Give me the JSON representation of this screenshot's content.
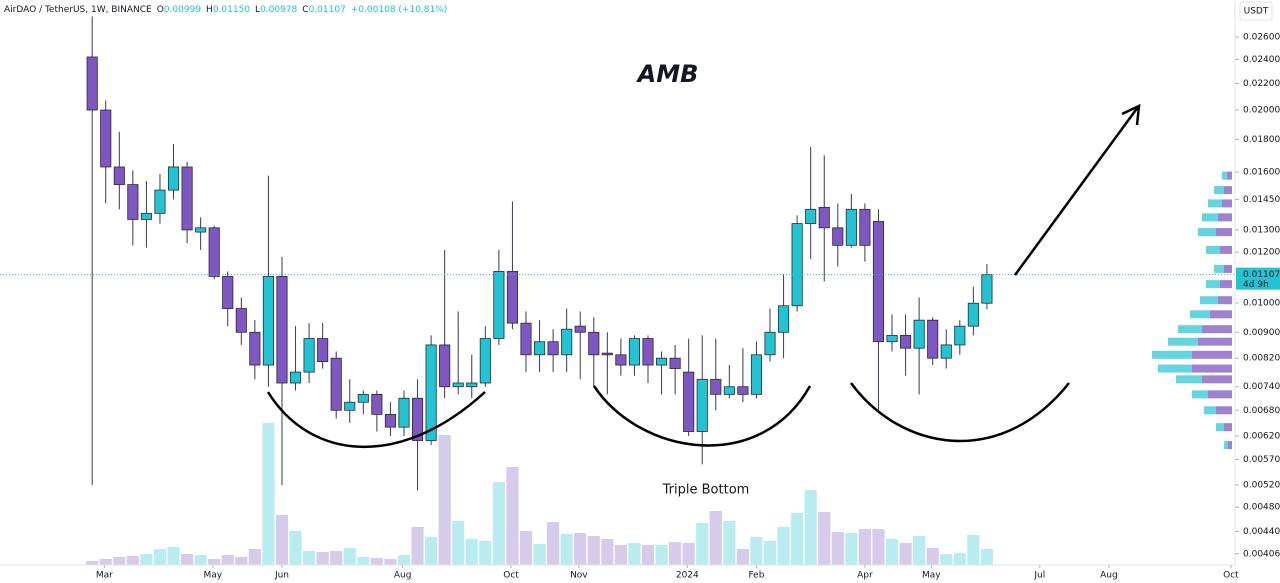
{
  "chart_data": {
    "type": "candlestick",
    "title": "AMB",
    "annotation": "Triple Bottom",
    "header": {
      "symbol": "AirDAO / TetherUS, 1W, BINANCE",
      "ohlc": [
        {
          "name": "O",
          "value": 0.00999
        },
        {
          "name": "H",
          "value": 0.0115,
          "label": "0.01150"
        },
        {
          "name": "L",
          "value": 0.00978
        },
        {
          "name": "C",
          "value": 0.01107
        }
      ],
      "change": "+0.00108 (+10.81%)"
    },
    "currency": "USDT",
    "countdown": "4d 9h",
    "up_color": "#22c3d2",
    "down_color": "#7e57c2",
    "volume_up_color": "#b9ecf1",
    "volume_down_color": "#d6cbeb",
    "log_y": true,
    "ylim": [
      0.0039,
      0.0297
    ],
    "yticks": [
      {
        "value": 0.026,
        "label": "0.02600"
      },
      {
        "value": 0.024,
        "label": "0.02400"
      },
      {
        "value": 0.022,
        "label": "0.02200"
      },
      {
        "value": 0.02,
        "label": "0.02000"
      },
      {
        "value": 0.018,
        "label": "0.01800"
      },
      {
        "value": 0.016,
        "label": "0.01600"
      },
      {
        "value": 0.0145,
        "label": "0.01450"
      },
      {
        "value": 0.013,
        "label": "0.01300"
      },
      {
        "value": 0.012,
        "label": "0.01200"
      },
      {
        "value": 0.01,
        "label": "0.01000"
      },
      {
        "value": 0.009,
        "label": "0.00900"
      },
      {
        "value": 0.0082,
        "label": "0.00820"
      },
      {
        "value": 0.0074,
        "label": "0.00740"
      },
      {
        "value": 0.0068,
        "label": "0.00680"
      },
      {
        "value": 0.0062,
        "label": "0.00620"
      },
      {
        "value": 0.0057,
        "label": "0.00570"
      },
      {
        "value": 0.0052,
        "label": "0.00520"
      },
      {
        "value": 0.0048,
        "label": "0.00480"
      },
      {
        "value": 0.0044,
        "label": "0.00440"
      },
      0.00406
    ],
    "xlim": [
      -6.8,
      84.3
    ],
    "xticks": [
      {
        "value": 0.9,
        "label": "Mar"
      },
      {
        "value": 8.9,
        "label": "May"
      },
      {
        "value": 14,
        "label": "Jun"
      },
      {
        "value": 22.9,
        "label": "Aug"
      },
      {
        "value": 30.9,
        "label": "Oct"
      },
      {
        "value": 35.9,
        "label": "Nov"
      },
      {
        "value": 43.9,
        "label": "2024"
      },
      {
        "value": 49,
        "label": "Feb"
      },
      {
        "value": 57,
        "label": "Apr"
      },
      {
        "value": 61.9,
        "label": "May"
      },
      {
        "value": 69.9,
        "label": "Jul"
      },
      {
        "value": 75,
        "label": "Aug"
      },
      {
        "value": 84,
        "label": "Oct"
      }
    ],
    "x": [
      0,
      1,
      2,
      3,
      4,
      5,
      6,
      7,
      8,
      9,
      10,
      11,
      12,
      13,
      14,
      15,
      16,
      17,
      18,
      19,
      20,
      21,
      22,
      23,
      24,
      25,
      26,
      27,
      28,
      29,
      30,
      31,
      32,
      33,
      34,
      35,
      36,
      37,
      38,
      39,
      40,
      41,
      42,
      43,
      44,
      45,
      46,
      47,
      48,
      49,
      50,
      51,
      52,
      53,
      54,
      55,
      56,
      57,
      58,
      59,
      60,
      61,
      62,
      63,
      64,
      65,
      66
    ],
    "candles": {
      "open": [
        0.0242,
        0.02,
        0.0163,
        0.0153,
        0.0135,
        0.0138,
        0.015,
        0.0163,
        0.0129,
        0.0131,
        0.011,
        0.0098,
        0.009,
        0.008,
        0.011,
        0.0075,
        0.0078,
        0.0088,
        0.0082,
        0.0068,
        0.007,
        0.0072,
        0.0067,
        0.0064,
        0.0071,
        0.0061,
        0.0086,
        0.0074,
        0.0074,
        0.0075,
        0.0088,
        0.0112,
        0.0093,
        0.0083,
        0.0087,
        0.0083,
        0.0092,
        0.009,
        0.00835,
        0.0083,
        0.008,
        0.0088,
        0.008,
        0.0082,
        0.0078,
        0.0063,
        0.0076,
        0.0072,
        0.0074,
        0.0072,
        0.0083,
        0.009,
        0.0099,
        0.0133,
        0.0141,
        0.0131,
        0.0123,
        0.014,
        0.0134,
        0.0087,
        0.0089,
        0.0085,
        0.0094,
        0.0082,
        0.0086,
        0.0092,
        0.00999
      ],
      "high": [
        0.028,
        0.0207,
        0.0185,
        0.0161,
        0.0155,
        0.0159,
        0.0177,
        0.0166,
        0.0136,
        0.0132,
        0.0112,
        0.0102,
        0.0094,
        0.0158,
        0.0118,
        0.0092,
        0.0093,
        0.0093,
        0.0084,
        0.0076,
        0.0073,
        0.0073,
        0.007,
        0.0073,
        0.0076,
        0.0089,
        0.0121,
        0.0097,
        0.0083,
        0.0092,
        0.0121,
        0.0144,
        0.0097,
        0.0094,
        0.0091,
        0.0098,
        0.0097,
        0.0095,
        0.009,
        0.0088,
        0.0089,
        0.0089,
        0.0084,
        0.0086,
        0.0088,
        0.0089,
        0.0088,
        0.008,
        0.0085,
        0.0087,
        0.0098,
        0.0111,
        0.0137,
        0.0175,
        0.017,
        0.0143,
        0.0148,
        0.0143,
        0.014,
        0.0096,
        0.0096,
        0.0102,
        0.0095,
        0.0091,
        0.0094,
        0.0106,
        0.0115
      ],
      "low": [
        0.0052,
        0.0143,
        0.014,
        0.0123,
        0.0122,
        0.0133,
        0.0145,
        0.0124,
        0.0121,
        0.0109,
        0.0092,
        0.0086,
        0.0076,
        0.0074,
        0.0052,
        0.0073,
        0.0075,
        0.0079,
        0.0066,
        0.0065,
        0.0067,
        0.0063,
        0.0062,
        0.0062,
        0.0051,
        0.006,
        0.0071,
        0.0072,
        0.0071,
        0.0074,
        0.0086,
        0.0091,
        0.0078,
        0.0078,
        0.0078,
        0.0078,
        0.0076,
        0.0074,
        0.0072,
        0.0077,
        0.0077,
        0.0075,
        0.0072,
        0.0072,
        0.0062,
        0.0056,
        0.0068,
        0.0071,
        0.007,
        0.0071,
        0.0081,
        0.0082,
        0.0097,
        0.0117,
        0.0108,
        0.0114,
        0.0122,
        0.0116,
        0.0068,
        0.0084,
        0.0077,
        0.0072,
        0.008,
        0.0079,
        0.0083,
        0.0089,
        0.00978
      ],
      "close": [
        0.02,
        0.0163,
        0.0153,
        0.0135,
        0.0138,
        0.015,
        0.0163,
        0.013,
        0.0131,
        0.011,
        0.0098,
        0.009,
        0.008,
        0.011,
        0.0075,
        0.0078,
        0.0088,
        0.0081,
        0.0068,
        0.007,
        0.0072,
        0.0067,
        0.0064,
        0.0071,
        0.0061,
        0.0086,
        0.0074,
        0.0075,
        0.0075,
        0.0088,
        0.0112,
        0.0093,
        0.0083,
        0.0087,
        0.0083,
        0.0091,
        0.009,
        0.0083,
        0.0083,
        0.008,
        0.0088,
        0.008,
        0.0082,
        0.0079,
        0.0063,
        0.0076,
        0.0072,
        0.0074,
        0.0072,
        0.0083,
        0.009,
        0.0099,
        0.0133,
        0.014,
        0.0131,
        0.0123,
        0.014,
        0.0123,
        0.0087,
        0.0089,
        0.0085,
        0.0094,
        0.0082,
        0.0086,
        0.0092,
        0.00999,
        0.01107
      ]
    },
    "volume": {
      "ylim": [
        0,
        150
      ],
      "values": [
        4,
        6,
        8,
        9,
        11,
        16,
        18,
        11,
        10,
        6,
        10,
        8,
        16,
        142,
        50,
        34,
        14,
        13,
        14,
        17,
        8,
        7,
        6,
        10,
        38,
        28,
        130,
        44,
        26,
        24,
        83,
        98,
        34,
        21,
        43,
        31,
        32,
        29,
        26,
        20,
        22,
        20,
        20,
        23,
        22,
        42,
        54,
        44,
        16,
        28,
        24,
        38,
        52,
        75,
        53,
        33,
        32,
        36,
        36,
        26,
        22,
        29,
        17,
        11,
        12,
        30,
        16
      ]
    },
    "volume_profile": {
      "xlim": [
        0,
        100
      ],
      "prices": [
        0.0158,
        0.015,
        0.0143,
        0.0136,
        0.0129,
        0.0121,
        0.0113,
        0.0107,
        0.0101,
        0.0096,
        0.0091,
        0.0087,
        0.0083,
        0.0079,
        0.0076,
        0.0072,
        0.0068,
        0.0064,
        0.006
      ],
      "up": [
        5,
        10,
        14,
        16,
        18,
        14,
        10,
        14,
        18,
        20,
        24,
        30,
        40,
        34,
        26,
        16,
        12,
        8,
        4
      ],
      "down": [
        5,
        8,
        10,
        14,
        16,
        12,
        8,
        12,
        14,
        22,
        30,
        34,
        40,
        40,
        30,
        24,
        16,
        8,
        4
      ]
    }
  }
}
